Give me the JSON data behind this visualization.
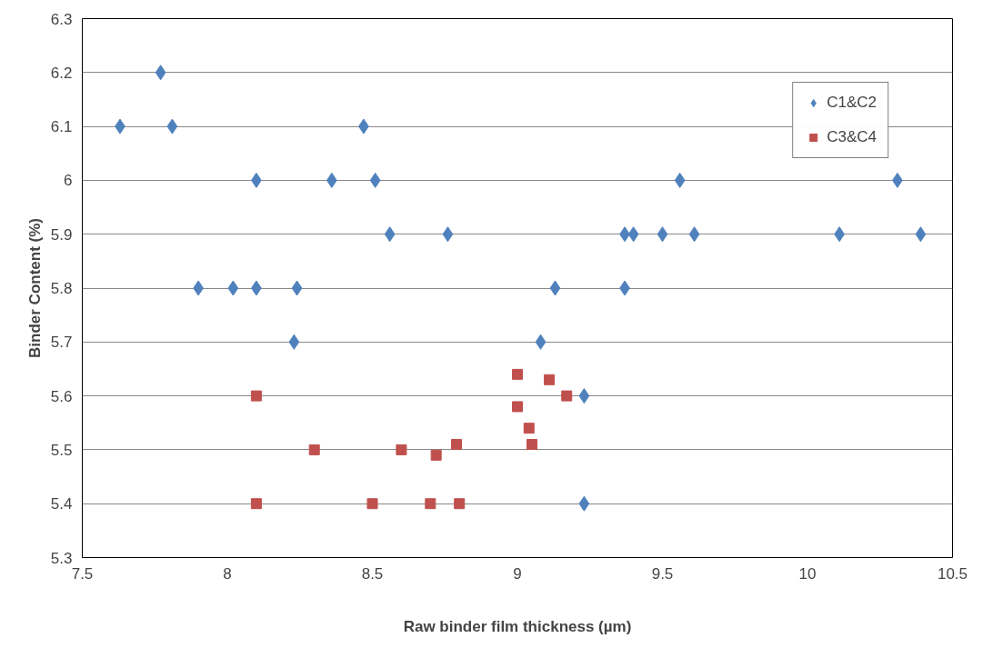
{
  "chart_data": {
    "type": "scatter",
    "xlabel": "Raw binder film thickness (µm)",
    "ylabel": "Binder Content (%)",
    "xlim": [
      7.5,
      10.5
    ],
    "xticks": [
      7.5,
      8,
      8.5,
      9,
      9.5,
      10,
      10.5
    ],
    "ylim": [
      5.3,
      6.3
    ],
    "yticks": [
      5.3,
      5.4,
      5.5,
      5.6,
      5.7,
      5.8,
      5.9,
      6,
      6.1,
      6.2,
      6.3
    ],
    "grid": "y",
    "legend": "top right",
    "series": [
      {
        "name": "C1&C2",
        "color": "#4f81bd",
        "marker": "diamond",
        "x": [
          7.63,
          7.77,
          7.81,
          8.1,
          8.36,
          8.47,
          8.51,
          8.56,
          8.76,
          7.9,
          8.02,
          8.1,
          8.24,
          8.23,
          9.13,
          9.08,
          9.23,
          9.23,
          9.37,
          9.4,
          9.5,
          9.56,
          9.61,
          9.37,
          10.11,
          10.31,
          10.39
        ],
        "values": [
          6.1,
          6.2,
          6.1,
          6.0,
          6.0,
          6.1,
          6.0,
          5.9,
          5.9,
          5.8,
          5.8,
          5.8,
          5.8,
          5.7,
          5.8,
          5.7,
          5.6,
          5.4,
          5.9,
          5.9,
          5.9,
          6.0,
          5.9,
          5.8,
          5.9,
          6.0,
          5.9
        ]
      },
      {
        "name": "C3&C4",
        "color": "#c0504d",
        "marker": "square",
        "x": [
          8.1,
          8.1,
          8.3,
          8.5,
          8.6,
          8.7,
          8.72,
          8.79,
          8.8,
          9.0,
          9.0,
          9.04,
          9.05,
          9.11,
          9.17
        ],
        "values": [
          5.6,
          5.4,
          5.5,
          5.4,
          5.5,
          5.4,
          5.49,
          5.51,
          5.4,
          5.64,
          5.58,
          5.54,
          5.51,
          5.63,
          5.6
        ]
      }
    ]
  }
}
